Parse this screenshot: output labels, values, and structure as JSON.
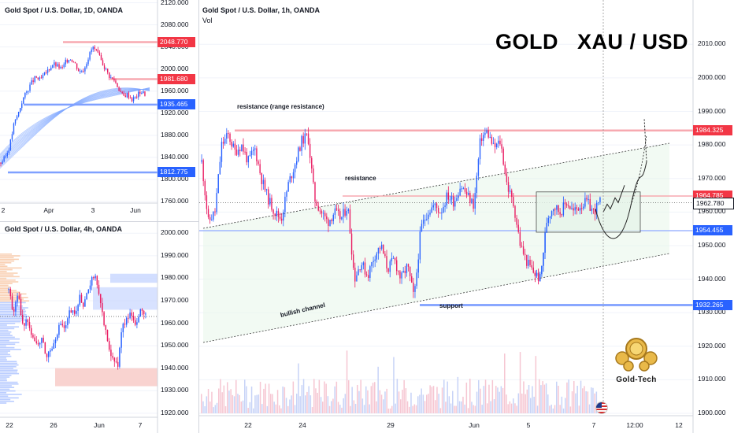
{
  "colors": {
    "up": "#2962ff",
    "down": "#e91e63",
    "resistance": "#f23645",
    "support": "#2962ff",
    "grid": "#f0f3fa"
  },
  "panes": {
    "daily": {
      "title": "Gold Spot / U.S. Dollar, 1D, OANDA",
      "y_ticks": [
        "2120.000",
        "2080.000",
        "2040.000",
        "2000.000",
        "1960.000",
        "1920.000",
        "1880.000",
        "1840.000",
        "1800.000",
        "1760.000"
      ],
      "x_ticks": [
        "2",
        "Apr",
        "3",
        "Jun"
      ],
      "tags": [
        {
          "label": "2048.770",
          "kind": "resistance"
        },
        {
          "label": "1981.680",
          "kind": "resistance"
        },
        {
          "label": "1935.465",
          "kind": "support"
        },
        {
          "label": "1812.775",
          "kind": "support"
        }
      ]
    },
    "h4": {
      "title": "Gold Spot / U.S. Dollar, 4h, OANDA",
      "y_ticks": [
        "2000.000",
        "1990.000",
        "1980.000",
        "1970.000",
        "1960.000",
        "1950.000",
        "1940.000",
        "1930.000",
        "1920.000"
      ],
      "x_ticks": [
        "22",
        "26",
        "Jun",
        "7"
      ]
    },
    "h1": {
      "title": "Gold Spot / U.S. Dollar, 1h, OANDA",
      "vol_label": "Vol",
      "heading": "GOLD   XAU / USD",
      "y_ticks": [
        "2010.000",
        "2000.000",
        "1990.000",
        "1980.000",
        "1970.000",
        "1960.000",
        "1950.000",
        "1940.000",
        "1930.000",
        "1920.000",
        "1910.000",
        "1900.000"
      ],
      "x_ticks": [
        "22",
        "24",
        "29",
        "Jun",
        "5",
        "7",
        "12:00",
        "12"
      ],
      "tags": [
        {
          "label": "1984.325",
          "kind": "resistance"
        },
        {
          "label": "1964.785",
          "kind": "resistance"
        },
        {
          "label": "1962.780",
          "kind": "last"
        },
        {
          "label": "1954.455",
          "kind": "support"
        },
        {
          "label": "1932.265",
          "kind": "support"
        }
      ],
      "annotations": {
        "range_resistance": "resistance (range resistance)",
        "resistance": "resistance",
        "support": "support",
        "bullish_channel": "bullish channel"
      },
      "logo_text": "Gold-Tech"
    }
  },
  "chart_data": [
    {
      "type": "candlestick",
      "title": "Gold Spot / U.S. Dollar, 1h, OANDA",
      "ylim": [
        1900,
        2015
      ],
      "x_ticks": [
        "22",
        "24",
        "29",
        "Jun",
        "5",
        "7",
        "12:00",
        "12"
      ],
      "levels": {
        "range_resistance": 1984.325,
        "resistance": 1964.785,
        "last_price": 1962.78,
        "range_support": 1954.455,
        "support": 1932.265
      },
      "close_path": [
        1975,
        1957,
        1960,
        1980,
        1983,
        1978,
        1980,
        1975,
        1979,
        1970,
        1964,
        1960,
        1958,
        1968,
        1974,
        1981,
        1983,
        1964,
        1960,
        1957,
        1960,
        1958,
        1962,
        1940,
        1945,
        1941,
        1947,
        1950,
        1943,
        1946,
        1940,
        1944,
        1934,
        1955,
        1960,
        1962,
        1960,
        1965,
        1963,
        1968,
        1965,
        1962,
        1982,
        1984,
        1979,
        1981,
        1968,
        1962,
        1950,
        1945,
        1942,
        1940,
        1958,
        1962,
        1960,
        1963,
        1960,
        1962,
        1963,
        1960,
        1963
      ]
    },
    {
      "type": "candlestick",
      "title": "Gold Spot / U.S. Dollar, 1D, OANDA",
      "ylim": [
        1740,
        2125
      ],
      "x_ticks": [
        "2",
        "Apr",
        "3",
        "Jun"
      ],
      "levels": [
        2048.77,
        1981.68,
        1935.465,
        1812.775
      ],
      "close_path": [
        1830,
        1840,
        1860,
        1900,
        1920,
        1945,
        1960,
        1975,
        1985,
        1980,
        1990,
        2000,
        2010,
        2005,
        2000,
        2015,
        2020,
        2010,
        1995,
        2000,
        2020,
        2040,
        2030,
        2015,
        2000,
        1985,
        1980,
        1965,
        1950,
        1955,
        1945,
        1950,
        1960,
        1955
      ]
    },
    {
      "type": "candlestick",
      "title": "Gold Spot / U.S. Dollar, 4h, OANDA",
      "ylim": [
        1914,
        2005
      ],
      "x_ticks": [
        "22",
        "26",
        "Jun",
        "7"
      ],
      "close_path": [
        1975,
        1965,
        1972,
        1958,
        1962,
        1955,
        1950,
        1953,
        1945,
        1949,
        1955,
        1960,
        1957,
        1966,
        1963,
        1972,
        1968,
        1975,
        1981,
        1976,
        1962,
        1950,
        1946,
        1940,
        1958,
        1962,
        1965,
        1960,
        1966,
        1963
      ]
    }
  ]
}
